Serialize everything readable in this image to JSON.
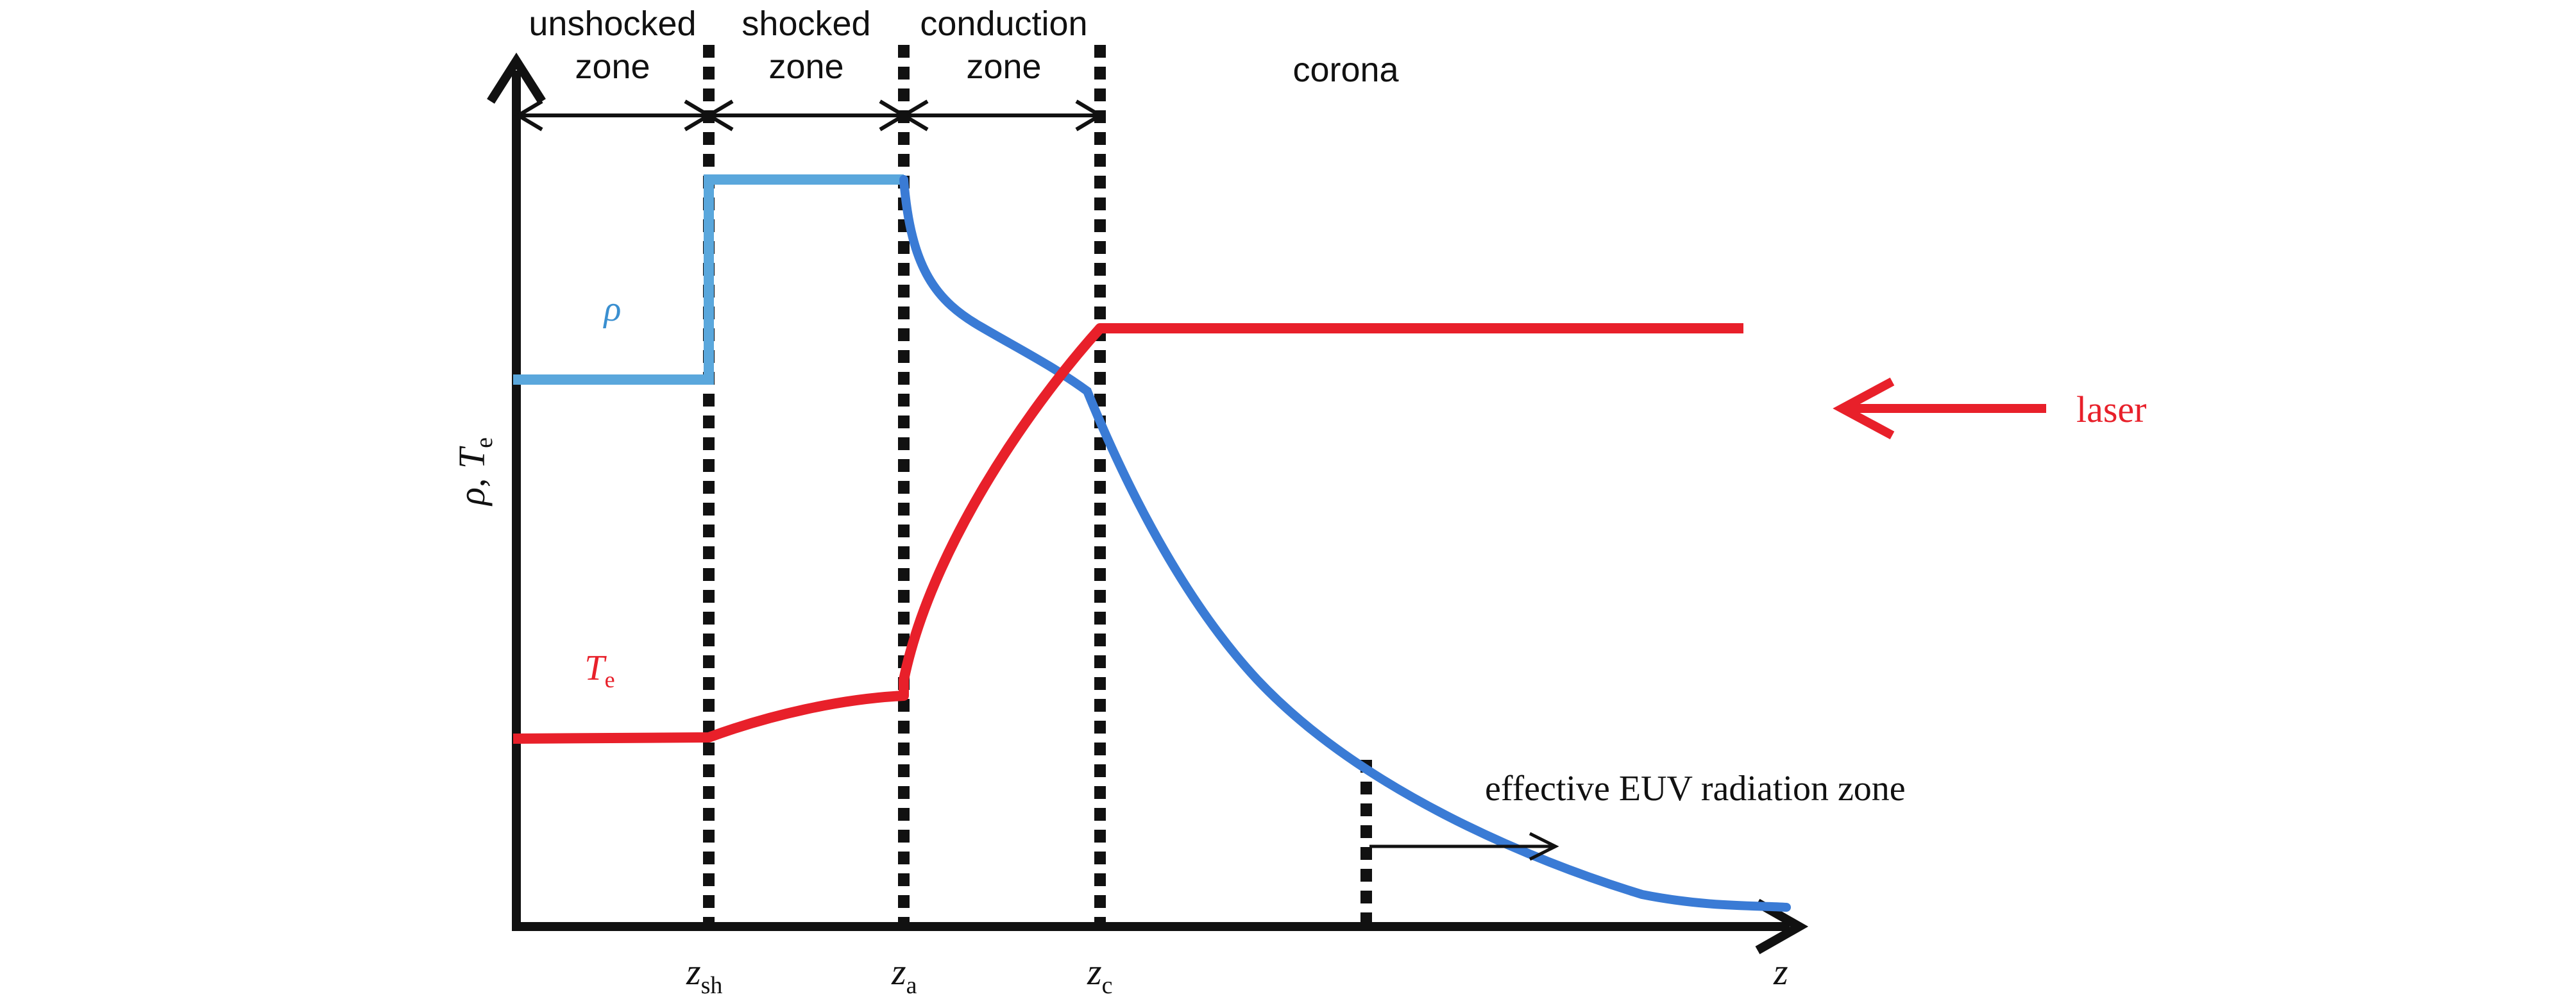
{
  "figure": {
    "axes": {
      "y_label_symbol": "ρ",
      "y_label_sep": ", ",
      "y_label_T": "T",
      "y_label_T_sub": "e",
      "x_label": "z"
    },
    "zones": {
      "unshocked_line1": "unshocked",
      "unshocked_line2": "zone",
      "shocked_line1": "shocked",
      "shocked_line2": "zone",
      "conduction_line1": "conduction",
      "conduction_line2": "zone",
      "corona": "corona"
    },
    "x_ticks": {
      "zsh_main": "z",
      "zsh_sub": "sh",
      "za_main": "z",
      "za_sub": "a",
      "zc_main": "z",
      "zc_sub": "c"
    },
    "curves": {
      "rho_label": "ρ",
      "te_label_main": "T",
      "te_label_sub": "e",
      "rho_color": "#3a7bd5",
      "rho_flat_color": "#5aa7dc",
      "te_color": "#e8202a"
    },
    "annotations": {
      "laser": "laser",
      "euv_zone": "effective EUV radiation zone"
    }
  }
}
